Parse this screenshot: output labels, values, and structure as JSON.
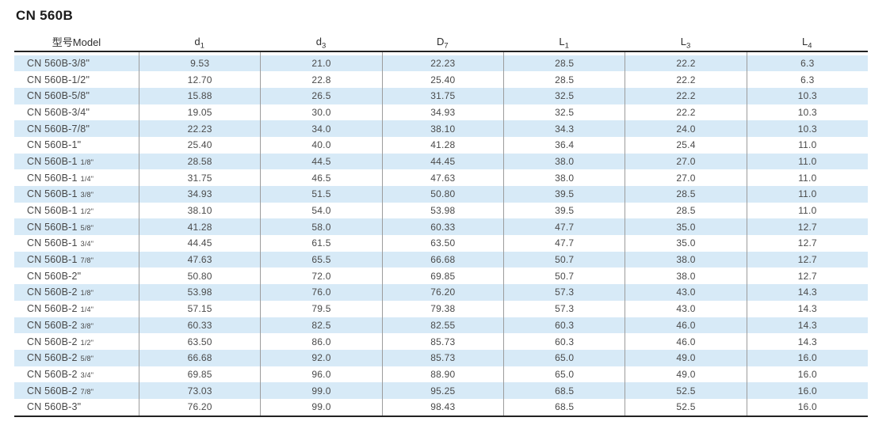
{
  "title": "CN 560B",
  "colors": {
    "stripe_blue": "#d7eaf7",
    "rule_dark": "#222222",
    "divider_gray": "#9c9c9c",
    "text_gray": "#4a4a4a",
    "header_text": "#2e2e2e"
  },
  "table": {
    "columns": [
      {
        "label": "型号Model",
        "sub": ""
      },
      {
        "label": "d",
        "sub": "1"
      },
      {
        "label": "d",
        "sub": "3"
      },
      {
        "label": "D",
        "sub": "7"
      },
      {
        "label": "L",
        "sub": "1"
      },
      {
        "label": "L",
        "sub": "3"
      },
      {
        "label": "L",
        "sub": "4"
      }
    ],
    "rows": [
      {
        "model": "CN 560B-3/8\"",
        "frac": "",
        "values": [
          "9.53",
          "21.0",
          "22.23",
          "28.5",
          "22.2",
          "6.3"
        ]
      },
      {
        "model": "CN 560B-1/2\"",
        "frac": "",
        "values": [
          "12.70",
          "22.8",
          "25.40",
          "28.5",
          "22.2",
          "6.3"
        ]
      },
      {
        "model": "CN 560B-5/8\"",
        "frac": "",
        "values": [
          "15.88",
          "26.5",
          "31.75",
          "32.5",
          "22.2",
          "10.3"
        ]
      },
      {
        "model": "CN 560B-3/4\"",
        "frac": "",
        "values": [
          "19.05",
          "30.0",
          "34.93",
          "32.5",
          "22.2",
          "10.3"
        ]
      },
      {
        "model": "CN 560B-7/8\"",
        "frac": "",
        "values": [
          "22.23",
          "34.0",
          "38.10",
          "34.3",
          "24.0",
          "10.3"
        ]
      },
      {
        "model": "CN 560B-1\"",
        "frac": "",
        "values": [
          "25.40",
          "40.0",
          "41.28",
          "36.4",
          "25.4",
          "11.0"
        ]
      },
      {
        "model": "CN 560B-1",
        "frac": "1/8\"",
        "values": [
          "28.58",
          "44.5",
          "44.45",
          "38.0",
          "27.0",
          "11.0"
        ]
      },
      {
        "model": "CN 560B-1",
        "frac": "1/4\"",
        "values": [
          "31.75",
          "46.5",
          "47.63",
          "38.0",
          "27.0",
          "11.0"
        ]
      },
      {
        "model": "CN 560B-1",
        "frac": "3/8\"",
        "values": [
          "34.93",
          "51.5",
          "50.80",
          "39.5",
          "28.5",
          "11.0"
        ]
      },
      {
        "model": "CN 560B-1",
        "frac": "1/2\"",
        "values": [
          "38.10",
          "54.0",
          "53.98",
          "39.5",
          "28.5",
          "11.0"
        ]
      },
      {
        "model": "CN 560B-1",
        "frac": "5/8\"",
        "values": [
          "41.28",
          "58.0",
          "60.33",
          "47.7",
          "35.0",
          "12.7"
        ]
      },
      {
        "model": "CN 560B-1",
        "frac": "3/4\"",
        "values": [
          "44.45",
          "61.5",
          "63.50",
          "47.7",
          "35.0",
          "12.7"
        ]
      },
      {
        "model": "CN 560B-1",
        "frac": "7/8\"",
        "values": [
          "47.63",
          "65.5",
          "66.68",
          "50.7",
          "38.0",
          "12.7"
        ]
      },
      {
        "model": "CN 560B-2\"",
        "frac": "",
        "values": [
          "50.80",
          "72.0",
          "69.85",
          "50.7",
          "38.0",
          "12.7"
        ]
      },
      {
        "model": "CN 560B-2",
        "frac": "1/8\"",
        "values": [
          "53.98",
          "76.0",
          "76.20",
          "57.3",
          "43.0",
          "14.3"
        ]
      },
      {
        "model": "CN 560B-2",
        "frac": "1/4\"",
        "values": [
          "57.15",
          "79.5",
          "79.38",
          "57.3",
          "43.0",
          "14.3"
        ]
      },
      {
        "model": "CN 560B-2",
        "frac": "3/8\"",
        "values": [
          "60.33",
          "82.5",
          "82.55",
          "60.3",
          "46.0",
          "14.3"
        ]
      },
      {
        "model": "CN 560B-2",
        "frac": "1/2\"",
        "values": [
          "63.50",
          "86.0",
          "85.73",
          "60.3",
          "46.0",
          "14.3"
        ]
      },
      {
        "model": "CN 560B-2",
        "frac": "5/8\"",
        "values": [
          "66.68",
          "92.0",
          "85.73",
          "65.0",
          "49.0",
          "16.0"
        ]
      },
      {
        "model": "CN 560B-2",
        "frac": "3/4\"",
        "values": [
          "69.85",
          "96.0",
          "88.90",
          "65.0",
          "49.0",
          "16.0"
        ]
      },
      {
        "model": "CN 560B-2",
        "frac": "7/8\"",
        "values": [
          "73.03",
          "99.0",
          "95.25",
          "68.5",
          "52.5",
          "16.0"
        ]
      },
      {
        "model": "CN 560B-3\"",
        "frac": "",
        "values": [
          "76.20",
          "99.0",
          "98.43",
          "68.5",
          "52.5",
          "16.0"
        ]
      }
    ]
  }
}
